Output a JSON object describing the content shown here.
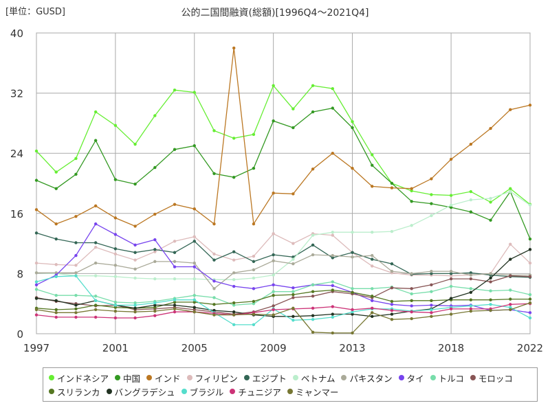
{
  "chart_data": {
    "type": "line",
    "title": "公的二国間融資(総額)[1996Q4～2021Q4]",
    "unit_label": "[単位：GUSD]",
    "xlabel": "",
    "ylabel": "",
    "ylim": [
      0,
      40
    ],
    "xlim": [
      1997,
      2022
    ],
    "y_ticks": [
      0,
      8,
      16,
      24,
      32,
      40
    ],
    "x_ticks": [
      1997,
      2001,
      2005,
      2009,
      2013,
      2018,
      2022
    ],
    "grid": true,
    "legend_position": "bottom",
    "x": [
      1997,
      1998,
      1999,
      2000,
      2001,
      2002,
      2003,
      2004,
      2005,
      2006,
      2007,
      2008,
      2009,
      2010,
      2011,
      2012,
      2013,
      2014,
      2015,
      2016,
      2017,
      2018,
      2019,
      2020,
      2021,
      2022
    ],
    "series": [
      {
        "name": "インドネシア",
        "color": "#66ee33",
        "values": [
          24.3,
          21.5,
          23.3,
          29.5,
          27.7,
          25.2,
          29.0,
          32.4,
          32.1,
          27.0,
          26.0,
          26.5,
          33.0,
          29.9,
          33.0,
          32.6,
          28.2,
          23.8,
          20.0,
          19.0,
          18.5,
          18.4,
          18.9,
          17.5,
          19.3,
          17.2
        ]
      },
      {
        "name": "中国",
        "color": "#339922",
        "values": [
          20.4,
          19.3,
          21.2,
          25.7,
          20.5,
          19.9,
          22.1,
          24.5,
          25.0,
          21.3,
          20.8,
          22.0,
          28.3,
          27.4,
          29.5,
          30.0,
          27.4,
          22.4,
          20.0,
          17.6,
          17.3,
          16.8,
          16.2,
          15.1,
          18.9,
          12.6
        ]
      },
      {
        "name": "インド",
        "color": "#bb7722",
        "values": [
          16.5,
          14.6,
          15.6,
          17.0,
          15.4,
          14.3,
          15.9,
          17.2,
          16.6,
          14.6,
          38.0,
          14.6,
          18.7,
          18.6,
          21.9,
          24.0,
          22.0,
          19.6,
          19.4,
          19.3,
          20.6,
          23.2,
          25.2,
          27.3,
          29.8,
          30.4
        ]
      },
      {
        "name": "フィリピン",
        "color": "#ddbbbb",
        "values": [
          9.4,
          9.2,
          9.1,
          11.5,
          10.6,
          9.8,
          10.9,
          12.3,
          12.9,
          10.6,
          9.8,
          10.3,
          13.3,
          12.0,
          13.3,
          13.1,
          10.8,
          9.0,
          8.1,
          7.8,
          7.8,
          7.7,
          7.8,
          8.0,
          11.9,
          9.4
        ]
      },
      {
        "name": "エジプト",
        "color": "#336655",
        "values": [
          13.4,
          12.6,
          12.1,
          12.1,
          11.3,
          10.8,
          11.2,
          10.8,
          12.3,
          9.8,
          10.9,
          9.6,
          10.5,
          10.2,
          11.8,
          10.1,
          10.8,
          9.9,
          9.3,
          7.9,
          8.0,
          8.0,
          8.1,
          7.8,
          7.6,
          7.5
        ]
      },
      {
        "name": "ベトナム",
        "color": "#bbeecc",
        "values": [
          8.1,
          8.0,
          7.7,
          7.7,
          7.6,
          7.4,
          7.3,
          7.3,
          7.3,
          7.2,
          7.2,
          7.4,
          7.8,
          9.9,
          13.1,
          13.5,
          13.5,
          13.5,
          13.6,
          14.4,
          15.7,
          17.1,
          17.8,
          18.0,
          18.9,
          17.1
        ]
      },
      {
        "name": "パキスタン",
        "color": "#aaaa99",
        "values": [
          8.1,
          8.1,
          8.1,
          9.4,
          9.1,
          8.6,
          9.6,
          9.6,
          9.4,
          6.0,
          8.1,
          8.5,
          9.7,
          9.3,
          10.5,
          10.4,
          10.2,
          10.4,
          8.3,
          8.0,
          8.3,
          8.3,
          7.8,
          8.0,
          7.8,
          7.8
        ]
      },
      {
        "name": "タイ",
        "color": "#7744ee",
        "values": [
          6.5,
          7.8,
          10.4,
          14.6,
          13.2,
          11.8,
          12.5,
          8.9,
          8.9,
          7.0,
          6.3,
          6.0,
          6.5,
          6.1,
          6.5,
          6.4,
          5.5,
          4.4,
          3.9,
          3.7,
          3.8,
          3.7,
          3.8,
          3.1,
          3.2,
          2.8
        ]
      },
      {
        "name": "トルコ",
        "color": "#77ddaa",
        "values": [
          5.9,
          5.1,
          5.1,
          5.0,
          4.2,
          4.1,
          4.3,
          4.7,
          5.1,
          4.8,
          3.8,
          4.0,
          5.6,
          5.6,
          6.5,
          6.9,
          6.0,
          6.0,
          6.2,
          5.3,
          5.6,
          6.3,
          6.0,
          5.7,
          5.8,
          5.2
        ]
      },
      {
        "name": "モロッコ",
        "color": "#885555",
        "values": [
          4.8,
          4.3,
          4.0,
          3.7,
          3.8,
          3.2,
          3.3,
          3.5,
          3.2,
          2.9,
          2.6,
          2.9,
          3.7,
          4.8,
          5.0,
          5.6,
          5.3,
          4.8,
          6.1,
          6.0,
          6.5,
          7.3,
          7.3,
          6.9,
          7.7,
          7.6
        ]
      },
      {
        "name": "スリランカ",
        "color": "#557722",
        "values": [
          3.4,
          3.2,
          3.3,
          3.8,
          3.5,
          3.4,
          3.5,
          4.2,
          4.2,
          3.9,
          4.1,
          4.3,
          5.1,
          5.2,
          5.6,
          5.8,
          5.5,
          5.0,
          4.3,
          4.4,
          4.4,
          4.5,
          4.5,
          4.5,
          4.6,
          4.6
        ]
      },
      {
        "name": "バングラデシュ",
        "color": "#223322",
        "values": [
          4.7,
          4.4,
          3.8,
          4.4,
          3.8,
          3.4,
          3.8,
          3.8,
          3.5,
          3.1,
          2.9,
          2.5,
          2.3,
          2.3,
          2.4,
          2.6,
          2.6,
          2.3,
          2.6,
          3.0,
          3.3,
          4.7,
          5.5,
          7.4,
          9.9,
          11.2
        ]
      },
      {
        "name": "ブラジル",
        "color": "#55ddcc",
        "values": [
          6.9,
          7.6,
          7.7,
          4.4,
          3.8,
          3.8,
          4.1,
          4.5,
          4.5,
          2.8,
          1.2,
          1.2,
          3.3,
          1.8,
          1.9,
          2.2,
          2.9,
          3.3,
          3.3,
          3.0,
          3.2,
          3.5,
          3.7,
          3.9,
          3.5,
          2.1
        ]
      },
      {
        "name": "チュニジア",
        "color": "#cc3377",
        "values": [
          2.5,
          2.2,
          2.2,
          2.2,
          2.1,
          2.1,
          2.4,
          2.9,
          2.9,
          2.7,
          2.5,
          2.8,
          3.2,
          3.3,
          3.4,
          3.6,
          3.2,
          3.4,
          3.1,
          2.9,
          2.8,
          3.3,
          3.3,
          3.3,
          3.9,
          4.0
        ]
      },
      {
        "name": "ミャンマー",
        "color": "#777733",
        "values": [
          3.2,
          2.8,
          2.8,
          3.2,
          3.0,
          2.9,
          3.0,
          3.3,
          2.9,
          2.5,
          2.5,
          2.6,
          2.5,
          3.4,
          0.2,
          0.1,
          0.1,
          2.8,
          1.9,
          2.0,
          2.3,
          2.6,
          3.0,
          3.1,
          3.2,
          4.1
        ]
      }
    ]
  }
}
